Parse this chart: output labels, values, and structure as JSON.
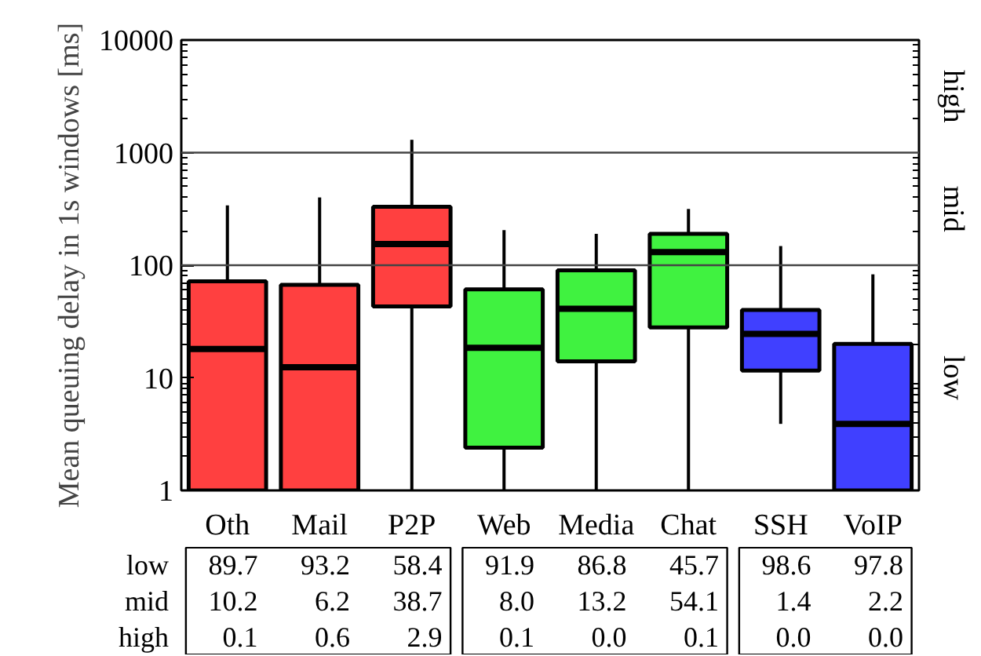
{
  "chart_data": {
    "type": "box",
    "ylabel": "Mean queuing delay in 1s windows [ms]",
    "categories": [
      "Oth",
      "Mail",
      "P2P",
      "Web",
      "Media",
      "Chat",
      "SSH",
      "VoIP"
    ],
    "colors": [
      "#ff0000",
      "#ff0000",
      "#ff0000",
      "#00ee00",
      "#00ee00",
      "#00ee00",
      "#0000ff",
      "#0000ff"
    ],
    "boxes": [
      {
        "low": 1,
        "q1": 1,
        "median": 18,
        "q3": 72,
        "high": 340
      },
      {
        "low": 1,
        "q1": 1,
        "median": 12.4,
        "q3": 67,
        "high": 400
      },
      {
        "low": 1,
        "q1": 43,
        "median": 154,
        "q3": 330,
        "high": 1300
      },
      {
        "low": 1,
        "q1": 2.4,
        "median": 18.5,
        "q3": 61,
        "high": 205
      },
      {
        "low": 1,
        "q1": 14,
        "median": 41,
        "q3": 90,
        "high": 190
      },
      {
        "low": 1,
        "q1": 28,
        "median": 131,
        "q3": 190,
        "high": 316
      },
      {
        "low": 3.9,
        "q1": 11.6,
        "median": 24.6,
        "q3": 40,
        "high": 148
      },
      {
        "low": 1,
        "q1": 1,
        "median": 3.9,
        "q3": 20,
        "high": 83
      }
    ],
    "log": true,
    "ylim": [
      1,
      10000
    ],
    "yticks": [
      1,
      10,
      100,
      1000,
      10000
    ],
    "grid": false,
    "ref_lines": [
      {
        "axis": "y",
        "value": 100
      },
      {
        "axis": "y",
        "value": 1000
      }
    ],
    "annotations": [
      "low",
      "mid",
      "high",
      "low",
      "mid",
      "high",
      "89.7",
      "93.2",
      "58.4",
      "91.9",
      "86.8",
      "45.7",
      "98.6",
      "97.8",
      "10.2",
      "6.2",
      "38.7",
      "8.0",
      "13.2",
      "54.1",
      "1.4",
      "2.2",
      "0.1",
      "0.6",
      "2.9",
      "0.1",
      "0.0",
      "0.1",
      "0.0",
      "0.0"
    ]
  }
}
